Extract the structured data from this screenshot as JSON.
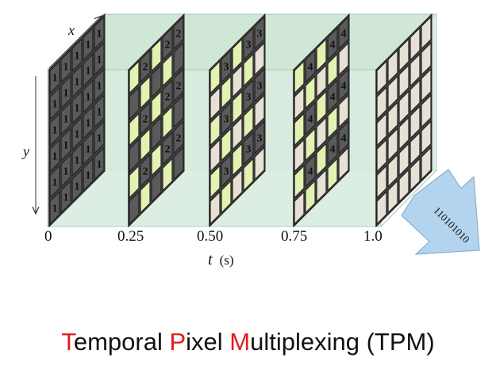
{
  "diagram": {
    "axes": {
      "x_label": "x",
      "y_label": "y",
      "t_label": "t",
      "t_unit": "(s)"
    },
    "frames": [
      {
        "time_label": "0",
        "number": "1",
        "pattern": "all"
      },
      {
        "time_label": "0.25",
        "number": "2",
        "pattern": "mixed"
      },
      {
        "time_label": "0.50",
        "number": "3",
        "pattern": "mixed"
      },
      {
        "time_label": "0.75",
        "number": "4",
        "pattern": "mixed"
      },
      {
        "time_label": "1.0",
        "number": "",
        "pattern": "none"
      }
    ],
    "bitstream": "110101010",
    "colors": {
      "slab_fill": "#d7ebde",
      "slab_top": "#c4e1cd",
      "arrow_fill": "#b3d4ee",
      "dark_cell": "#5a5a5a",
      "light_cell": "#e7e0d4",
      "green_cell": "#e2f2b0",
      "highlight": "#e31b1b"
    }
  },
  "caption": {
    "parts": [
      {
        "text": "T",
        "hl": true
      },
      {
        "text": "emporal ",
        "hl": false
      },
      {
        "text": "P",
        "hl": true
      },
      {
        "text": "ixel ",
        "hl": false
      },
      {
        "text": "M",
        "hl": true
      },
      {
        "text": "ultiplexing (TPM)",
        "hl": false
      }
    ]
  }
}
